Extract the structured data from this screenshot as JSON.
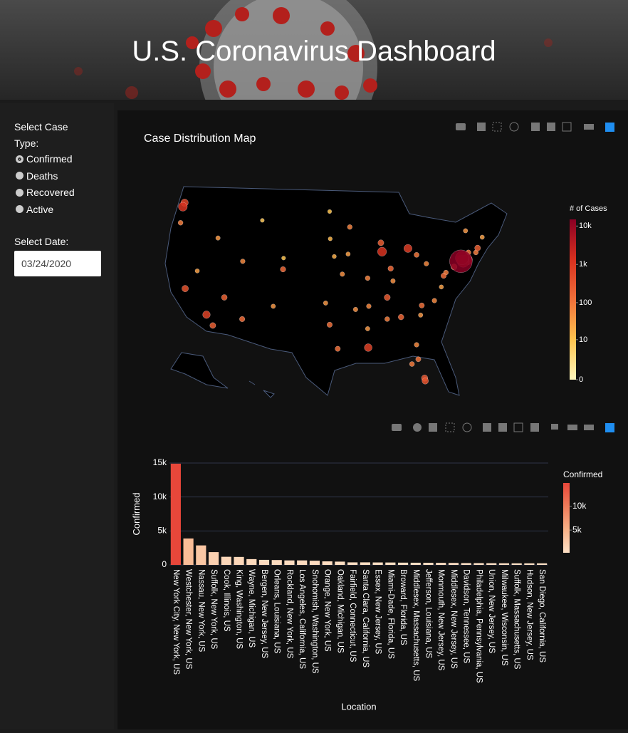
{
  "header": {
    "title": "U.S. Coronavirus Dashboard"
  },
  "controls": {
    "case_type_label": "Select Case Type:",
    "case_types": [
      "Confirmed",
      "Deaths",
      "Recovered",
      "Active"
    ],
    "selected_case_type": "Confirmed",
    "date_label": "Select Date:",
    "date": "03/24/2020"
  },
  "chart_data": [
    {
      "type": "scatter_geo",
      "title": "Case Distribution Map",
      "x": [
        -74.0,
        -73.8,
        -73.6,
        -72.9,
        -74.1,
        -87.7,
        -122.3,
        -122.0,
        -83.2,
        -90.1,
        -118.2,
        -121.9,
        -117.1,
        -80.2,
        -80.3,
        -86.8,
        -87.9,
        -71.1,
        -75.2,
        -104.9,
        -112.0,
        -84.4,
        -96.8,
        -95.4,
        -111.9,
        -116.2,
        -93.3,
        -94.6,
        -115.1,
        -86.2,
        -81.7,
        -80.8,
        -106.6,
        -122.7,
        -119.8,
        -96.0,
        -97.5,
        -82.5,
        -81.4,
        -81.7,
        -90.0,
        -90.2,
        -85.8,
        -86.8,
        -80.0,
        -76.6,
        -77.0,
        -77.4,
        -78.6,
        -96.8,
        -108.5,
        -104.8,
        -96.7,
        -93.6,
        -92.3,
        -90.2,
        -81.0,
        -72.7,
        -71.4,
        -73.2,
        -70.3
      ],
      "y": [
        40.7,
        41.1,
        40.7,
        40.9,
        40.95,
        41.9,
        47.5,
        48.0,
        42.3,
        29.95,
        34.05,
        37.3,
        32.7,
        25.8,
        26.15,
        36.2,
        43.0,
        42.35,
        40.0,
        39.7,
        33.5,
        33.75,
        32.8,
        29.8,
        40.7,
        43.6,
        44.97,
        39.1,
        36.2,
        39.8,
        41.5,
        35.2,
        35.1,
        45.5,
        39.5,
        41.3,
        35.5,
        27.9,
        28.5,
        30.3,
        35.1,
        38.6,
        38.25,
        33.5,
        40.4,
        39.3,
        38.9,
        37.5,
        35.8,
        46.9,
        45.8,
        41.1,
        43.5,
        41.6,
        34.7,
        32.3,
        34.0,
        41.8,
        41.8,
        44.5,
        43.7
      ],
      "values": [
        14904,
        3891,
        2869,
        1880,
        742,
        1194,
        1170,
        614,
        851,
        716,
        662,
        375,
        230,
        352,
        330,
        267,
        241,
        230,
        262,
        150,
        140,
        180,
        130,
        120,
        60,
        40,
        70,
        50,
        200,
        150,
        100,
        120,
        40,
        80,
        30,
        20,
        40,
        90,
        110,
        60,
        60,
        70,
        50,
        80,
        60,
        80,
        140,
        30,
        60,
        10,
        8,
        10,
        15,
        30,
        50,
        40,
        40,
        100,
        80,
        40,
        30
      ],
      "colorscale": [
        "#fff7bc",
        "#fec44f",
        "#f0703a",
        "#d7301f",
        "#8b0024"
      ],
      "log_scale": true,
      "colorbar": {
        "title": "# of Cases",
        "lim": [
          0,
          14904
        ],
        "ticks": [
          0,
          10,
          100,
          {
            "value": 1000,
            "label": "1k"
          },
          {
            "value": 10000,
            "label": "10k"
          }
        ]
      }
    },
    {
      "type": "bar",
      "y_label": "Confirmed",
      "x_label": "Location",
      "categories": [
        "New York City, New York, US",
        "Westchester, New York, US",
        "Nassau, New York, US",
        "Suffolk, New York, US",
        "Cook, Illinois, US",
        "King, Washington, US",
        "Wayne, Michigan, US",
        "Bergen, New Jersey, US",
        "Orleans, Louisiana, US",
        "Rockland, New York, US",
        "Los Angeles, California, US",
        "Snohomish, Washington, US",
        "Orange, New York, US",
        "Oakland, Michigan, US",
        "Fairfield, Connecticut, US",
        "Santa Clara, California, US",
        "Essex, New Jersey, US",
        "Miami-Dade, Florida, US",
        "Broward, Florida, US",
        "Middlesex, Massachusetts, US",
        "Jefferson, Louisiana, US",
        "Monmouth, New Jersey, US",
        "Middlesex, New Jersey, US",
        "Davidson, Tennessee, US",
        "Philadelphia, Pennsylvania, US",
        "Union, New Jersey, US",
        "Milwaukee, Wisconsin, US",
        "Suffolk, Massachusetts, US",
        "Hudson, New Jersey, US",
        "San Diego, California, US"
      ],
      "values": [
        14904,
        3891,
        2869,
        1880,
        1194,
        1170,
        851,
        742,
        716,
        660,
        662,
        614,
        520,
        480,
        371,
        375,
        360,
        352,
        330,
        320,
        310,
        300,
        290,
        267,
        262,
        250,
        241,
        230,
        230,
        230
      ],
      "ylim": [
        0,
        15000
      ],
      "yticks": [
        0,
        {
          "value": 5000,
          "label": "5k"
        },
        {
          "value": 10000,
          "label": "10k"
        },
        {
          "value": 15000,
          "label": "15k"
        }
      ],
      "grid": true,
      "colorscale": [
        "#fde0c5",
        "#f7b187",
        "#ef7b5a",
        "#e8473a"
      ],
      "colorbar": {
        "title": "Confirmed",
        "ticks": [
          {
            "value": 5000,
            "label": "5k"
          },
          {
            "value": 10000,
            "label": "10k"
          }
        ]
      }
    }
  ]
}
